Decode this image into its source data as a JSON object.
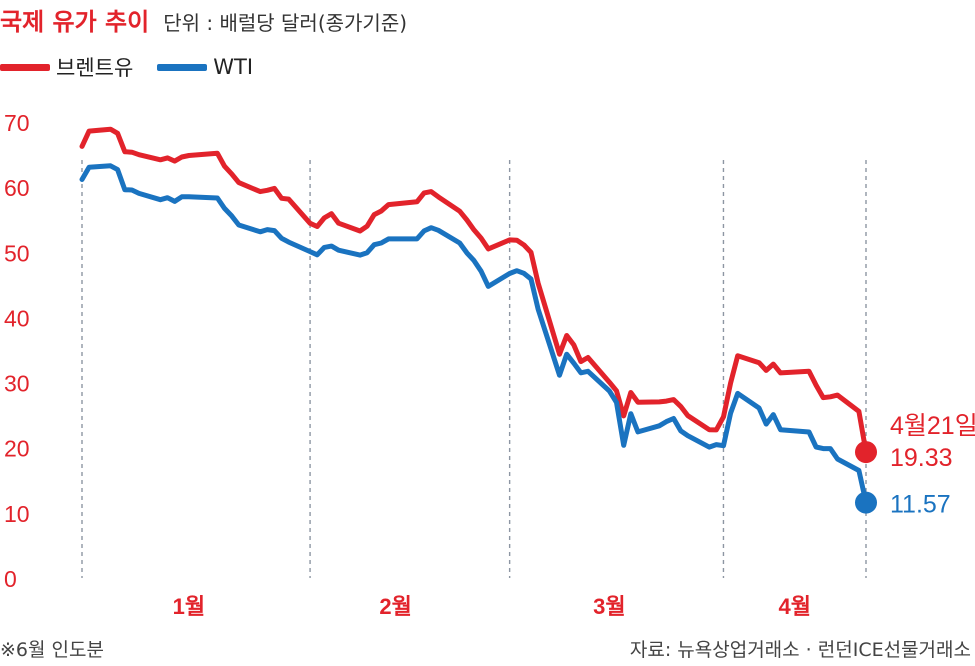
{
  "header": {
    "title": "국제 유가 추이",
    "unit": "단위 : 배럴당 달러(종가기준)"
  },
  "legend": [
    {
      "label": "브렌트유",
      "color": "#e2232b"
    },
    {
      "label": "WTI",
      "color": "#1a73c0"
    }
  ],
  "footer": {
    "note": "※6월 인도분",
    "source": "자료: 뉴욕상업거래소 · 런던ICE선물거래소"
  },
  "chart_data": {
    "type": "line",
    "ylim": [
      0,
      70
    ],
    "yticks": [
      "0",
      "10",
      "20",
      "30",
      "40",
      "50",
      "60",
      "70"
    ],
    "month_labels": [
      "1월",
      "2월",
      "3월",
      "4월"
    ],
    "grid": false,
    "legend_position": "top-left",
    "end_annotation": {
      "date": "4월21일",
      "brent": "19.33",
      "wti": "11.57"
    },
    "series": [
      {
        "name": "브렌트유",
        "color": "#e2232b",
        "values": [
          {
            "x": "2020-01-02",
            "y": 66.25
          },
          {
            "x": "2020-01-03",
            "y": 68.6
          },
          {
            "x": "2020-01-06",
            "y": 68.9
          },
          {
            "x": "2020-01-07",
            "y": 68.27
          },
          {
            "x": "2020-01-08",
            "y": 65.44
          },
          {
            "x": "2020-01-09",
            "y": 65.37
          },
          {
            "x": "2020-01-10",
            "y": 64.98
          },
          {
            "x": "2020-01-13",
            "y": 64.2
          },
          {
            "x": "2020-01-14",
            "y": 64.49
          },
          {
            "x": "2020-01-15",
            "y": 64.0
          },
          {
            "x": "2020-01-16",
            "y": 64.62
          },
          {
            "x": "2020-01-17",
            "y": 64.85
          },
          {
            "x": "2020-01-21",
            "y": 65.2
          },
          {
            "x": "2020-01-22",
            "y": 63.21
          },
          {
            "x": "2020-01-23",
            "y": 62.04
          },
          {
            "x": "2020-01-24",
            "y": 60.69
          },
          {
            "x": "2020-01-27",
            "y": 59.32
          },
          {
            "x": "2020-01-28",
            "y": 59.51
          },
          {
            "x": "2020-01-29",
            "y": 59.81
          },
          {
            "x": "2020-01-30",
            "y": 58.29
          },
          {
            "x": "2020-01-31",
            "y": 58.16
          },
          {
            "x": "2020-02-03",
            "y": 54.45
          },
          {
            "x": "2020-02-04",
            "y": 53.96
          },
          {
            "x": "2020-02-05",
            "y": 55.28
          },
          {
            "x": "2020-02-06",
            "y": 55.93
          },
          {
            "x": "2020-02-07",
            "y": 54.47
          },
          {
            "x": "2020-02-10",
            "y": 53.27
          },
          {
            "x": "2020-02-11",
            "y": 54.01
          },
          {
            "x": "2020-02-12",
            "y": 55.79
          },
          {
            "x": "2020-02-13",
            "y": 56.34
          },
          {
            "x": "2020-02-14",
            "y": 57.32
          },
          {
            "x": "2020-02-18",
            "y": 57.75
          },
          {
            "x": "2020-02-19",
            "y": 59.12
          },
          {
            "x": "2020-02-20",
            "y": 59.31
          },
          {
            "x": "2020-02-21",
            "y": 58.5
          },
          {
            "x": "2020-02-24",
            "y": 56.3
          },
          {
            "x": "2020-02-25",
            "y": 54.95
          },
          {
            "x": "2020-02-26",
            "y": 53.43
          },
          {
            "x": "2020-02-27",
            "y": 52.18
          },
          {
            "x": "2020-02-28",
            "y": 50.52
          },
          {
            "x": "2020-03-02",
            "y": 51.9
          },
          {
            "x": "2020-03-03",
            "y": 51.86
          },
          {
            "x": "2020-03-04",
            "y": 51.13
          },
          {
            "x": "2020-03-05",
            "y": 49.99
          },
          {
            "x": "2020-03-06",
            "y": 45.27
          },
          {
            "x": "2020-03-09",
            "y": 34.36
          },
          {
            "x": "2020-03-10",
            "y": 37.22
          },
          {
            "x": "2020-03-11",
            "y": 35.79
          },
          {
            "x": "2020-03-12",
            "y": 33.22
          },
          {
            "x": "2020-03-13",
            "y": 33.85
          },
          {
            "x": "2020-03-16",
            "y": 30.05
          },
          {
            "x": "2020-03-17",
            "y": 28.73
          },
          {
            "x": "2020-03-18",
            "y": 24.88
          },
          {
            "x": "2020-03-19",
            "y": 28.47
          },
          {
            "x": "2020-03-20",
            "y": 26.98
          },
          {
            "x": "2020-03-23",
            "y": 27.03
          },
          {
            "x": "2020-03-24",
            "y": 27.15
          },
          {
            "x": "2020-03-25",
            "y": 27.39
          },
          {
            "x": "2020-03-26",
            "y": 26.34
          },
          {
            "x": "2020-03-27",
            "y": 24.93
          },
          {
            "x": "2020-03-30",
            "y": 22.76
          },
          {
            "x": "2020-03-31",
            "y": 22.74
          },
          {
            "x": "2020-04-01",
            "y": 24.74
          },
          {
            "x": "2020-04-02",
            "y": 29.94
          },
          {
            "x": "2020-04-03",
            "y": 34.11
          },
          {
            "x": "2020-04-06",
            "y": 33.05
          },
          {
            "x": "2020-04-07",
            "y": 31.87
          },
          {
            "x": "2020-04-08",
            "y": 32.84
          },
          {
            "x": "2020-04-09",
            "y": 31.48
          },
          {
            "x": "2020-04-13",
            "y": 31.74
          },
          {
            "x": "2020-04-14",
            "y": 29.6
          },
          {
            "x": "2020-04-15",
            "y": 27.69
          },
          {
            "x": "2020-04-16",
            "y": 27.82
          },
          {
            "x": "2020-04-17",
            "y": 28.08
          },
          {
            "x": "2020-04-20",
            "y": 25.57
          },
          {
            "x": "2020-04-21",
            "y": 19.33
          }
        ]
      },
      {
        "name": "WTI",
        "color": "#1a73c0",
        "values": [
          {
            "x": "2020-01-02",
            "y": 61.18
          },
          {
            "x": "2020-01-03",
            "y": 63.05
          },
          {
            "x": "2020-01-06",
            "y": 63.27
          },
          {
            "x": "2020-01-07",
            "y": 62.7
          },
          {
            "x": "2020-01-08",
            "y": 59.61
          },
          {
            "x": "2020-01-09",
            "y": 59.56
          },
          {
            "x": "2020-01-10",
            "y": 59.04
          },
          {
            "x": "2020-01-13",
            "y": 58.08
          },
          {
            "x": "2020-01-14",
            "y": 58.38
          },
          {
            "x": "2020-01-15",
            "y": 57.81
          },
          {
            "x": "2020-01-16",
            "y": 58.52
          },
          {
            "x": "2020-01-17",
            "y": 58.54
          },
          {
            "x": "2020-01-21",
            "y": 58.34
          },
          {
            "x": "2020-01-22",
            "y": 56.74
          },
          {
            "x": "2020-01-23",
            "y": 55.59
          },
          {
            "x": "2020-01-24",
            "y": 54.19
          },
          {
            "x": "2020-01-27",
            "y": 53.14
          },
          {
            "x": "2020-01-28",
            "y": 53.48
          },
          {
            "x": "2020-01-29",
            "y": 53.33
          },
          {
            "x": "2020-01-30",
            "y": 52.14
          },
          {
            "x": "2020-01-31",
            "y": 51.56
          },
          {
            "x": "2020-02-03",
            "y": 50.11
          },
          {
            "x": "2020-02-04",
            "y": 49.61
          },
          {
            "x": "2020-02-05",
            "y": 50.75
          },
          {
            "x": "2020-02-06",
            "y": 50.95
          },
          {
            "x": "2020-02-07",
            "y": 50.32
          },
          {
            "x": "2020-02-10",
            "y": 49.57
          },
          {
            "x": "2020-02-11",
            "y": 49.94
          },
          {
            "x": "2020-02-12",
            "y": 51.17
          },
          {
            "x": "2020-02-13",
            "y": 51.42
          },
          {
            "x": "2020-02-14",
            "y": 52.05
          },
          {
            "x": "2020-02-18",
            "y": 52.05
          },
          {
            "x": "2020-02-19",
            "y": 53.29
          },
          {
            "x": "2020-02-20",
            "y": 53.78
          },
          {
            "x": "2020-02-21",
            "y": 53.38
          },
          {
            "x": "2020-02-24",
            "y": 51.43
          },
          {
            "x": "2020-02-25",
            "y": 49.9
          },
          {
            "x": "2020-02-26",
            "y": 48.73
          },
          {
            "x": "2020-02-27",
            "y": 47.09
          },
          {
            "x": "2020-02-28",
            "y": 44.76
          },
          {
            "x": "2020-03-02",
            "y": 46.75
          },
          {
            "x": "2020-03-03",
            "y": 47.18
          },
          {
            "x": "2020-03-04",
            "y": 46.78
          },
          {
            "x": "2020-03-05",
            "y": 45.9
          },
          {
            "x": "2020-03-06",
            "y": 41.28
          },
          {
            "x": "2020-03-09",
            "y": 31.13
          },
          {
            "x": "2020-03-10",
            "y": 34.36
          },
          {
            "x": "2020-03-11",
            "y": 32.98
          },
          {
            "x": "2020-03-12",
            "y": 31.5
          },
          {
            "x": "2020-03-13",
            "y": 31.73
          },
          {
            "x": "2020-03-16",
            "y": 28.7
          },
          {
            "x": "2020-03-17",
            "y": 26.95
          },
          {
            "x": "2020-03-18",
            "y": 20.37
          },
          {
            "x": "2020-03-19",
            "y": 25.22
          },
          {
            "x": "2020-03-20",
            "y": 22.43
          },
          {
            "x": "2020-03-23",
            "y": 23.36
          },
          {
            "x": "2020-03-24",
            "y": 24.01
          },
          {
            "x": "2020-03-25",
            "y": 24.49
          },
          {
            "x": "2020-03-26",
            "y": 22.6
          },
          {
            "x": "2020-03-27",
            "y": 21.84
          },
          {
            "x": "2020-03-30",
            "y": 20.09
          },
          {
            "x": "2020-03-31",
            "y": 20.48
          },
          {
            "x": "2020-04-01",
            "y": 20.31
          },
          {
            "x": "2020-04-02",
            "y": 25.32
          },
          {
            "x": "2020-04-03",
            "y": 28.34
          },
          {
            "x": "2020-04-06",
            "y": 26.08
          },
          {
            "x": "2020-04-07",
            "y": 23.63
          },
          {
            "x": "2020-04-08",
            "y": 25.09
          },
          {
            "x": "2020-04-09",
            "y": 22.76
          },
          {
            "x": "2020-04-13",
            "y": 22.41
          },
          {
            "x": "2020-04-14",
            "y": 20.11
          },
          {
            "x": "2020-04-15",
            "y": 19.87
          },
          {
            "x": "2020-04-16",
            "y": 19.87
          },
          {
            "x": "2020-04-17",
            "y": 18.27
          },
          {
            "x": "2020-04-20",
            "y": 16.5
          },
          {
            "x": "2020-04-21",
            "y": 11.57
          }
        ]
      }
    ]
  }
}
